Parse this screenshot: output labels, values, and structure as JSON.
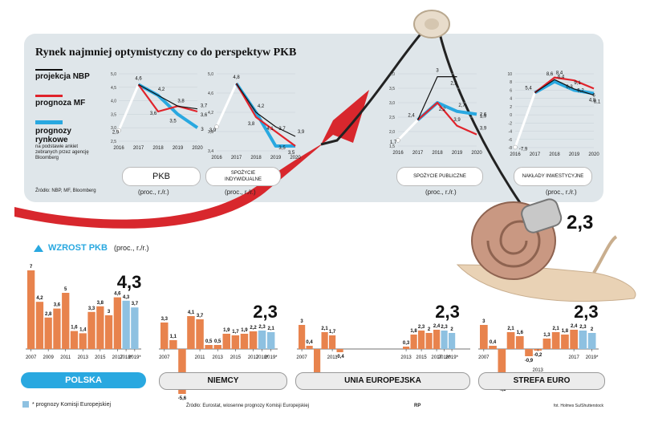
{
  "title": "Rynek najmniej optymistyczny co do perspektyw PKB",
  "legend": {
    "nbp": "projekcja NBP",
    "mf": "prognoza MF",
    "market_1": "prognozy",
    "market_2": "rynkowe",
    "market_note_1": "na podstawie ankiet",
    "market_note_2": "zebranych przez agencję",
    "market_note_3": "Bloomberg",
    "colors": {
      "nbp": "#111111",
      "mf": "#e0232b",
      "market": "#29a8e0"
    }
  },
  "source_top": "Źródło: NBP, MF, Bloomberg",
  "unit_label": "(proc., r./r.)",
  "growth_label": "WZROST PKB",
  "growth_unit": "(proc., r./r.)",
  "ec_note": "* prognozy Komisji Europejskiej",
  "source_bottom": "Źródło: Eurostat, wiosenne prognozy Komisji Europejskiej",
  "rp_mark": "RP",
  "photo_credit": "fot. Holmes Su/Shutterstock",
  "snail_value": "2,3",
  "colors": {
    "bar": "#e8834d",
    "forecast_bar": "#8ec1e1",
    "accent": "#29a8e0",
    "arrow": "#d8272d"
  },
  "chart_data": [
    {
      "type": "line",
      "title": "PKB",
      "x": [
        "2016",
        "2017",
        "2018",
        "2019",
        "2020"
      ],
      "yticks": [
        "2,5",
        "3,0",
        "3,5",
        "4,0",
        "4,5",
        "5,0"
      ],
      "ylim": [
        2.5,
        5.0
      ],
      "series": [
        {
          "name": "projekcja NBP",
          "values": [
            null,
            4.6,
            4.2,
            3.8,
            3.7
          ]
        },
        {
          "name": "prognoza MF",
          "values": [
            null,
            4.6,
            3.6,
            3.8,
            3.6
          ]
        },
        {
          "name": "prognozy rynkowe",
          "values": [
            null,
            4.6,
            4.2,
            3.5,
            3.0
          ]
        }
      ],
      "start": {
        "x": "2016",
        "value": 2.9
      },
      "labels": [
        "2,9",
        "4,6",
        "4,2",
        "3,8",
        "3,7",
        "3,6",
        "3,6",
        "3,5",
        "3"
      ]
    },
    {
      "type": "line",
      "title": "SPOŻYCIE INDYWIDUALNE",
      "x": [
        "2016",
        "2017",
        "2018",
        "2019",
        "2020"
      ],
      "yticks": [
        "3,4",
        "3,8",
        "4,2",
        "4,6",
        "5,0"
      ],
      "ylim": [
        3.4,
        5.0
      ],
      "series": [
        {
          "name": "projekcja NBP",
          "values": [
            null,
            4.8,
            4.2,
            3.9,
            3.7
          ]
        },
        {
          "name": "prognoza MF",
          "values": [
            null,
            4.8,
            4.1,
            3.8,
            3.5
          ]
        },
        {
          "name": "prognozy rynkowe",
          "values": [
            null,
            4.8,
            4.2,
            3.5,
            3.5
          ]
        }
      ],
      "start": {
        "x": "2016",
        "value": 3.9
      },
      "labels": [
        "3,9",
        "4,8",
        "4,2",
        "4,1",
        "3,9",
        "3,8",
        "3,7",
        "3,5",
        "3,5"
      ]
    },
    {
      "type": "line",
      "title": "SPOŻYCIE PUBLICZNE",
      "x": [
        "2016",
        "2017",
        "2018",
        "2019",
        "2020"
      ],
      "yticks": [
        "1,5",
        "2,0",
        "2,5",
        "3,0",
        "3,5",
        "4,0"
      ],
      "ylim": [
        1.5,
        4.0
      ],
      "series": [
        {
          "name": "projekcja NBP",
          "values": [
            null,
            2.4,
            3.9,
            3.9,
            null
          ]
        },
        {
          "name": "prognoza MF",
          "values": [
            null,
            2.4,
            3.0,
            2.2,
            1.9
          ]
        },
        {
          "name": "prognozy rynkowe",
          "values": [
            null,
            2.4,
            3.0,
            2.7,
            2.6
          ]
        }
      ],
      "start": {
        "x": "2016",
        "value": 1.7
      },
      "labels": [
        "1,7",
        "2,4",
        "3",
        "2,2",
        "2,2",
        "3,9",
        "3,9",
        "2,7",
        "2,6",
        "1,9"
      ]
    },
    {
      "type": "line",
      "title": "NAKŁADY INWESTYCYJNE",
      "x": [
        "2016",
        "2017",
        "2018",
        "2019",
        "2020"
      ],
      "yticks": [
        "-8",
        "-6",
        "-4",
        "-2",
        "0",
        "2",
        "4",
        "6",
        "8",
        "10"
      ],
      "ylim": [
        -8,
        10
      ],
      "series": [
        {
          "name": "projekcja NBP",
          "values": [
            null,
            5.4,
            8.6,
            6.3,
            4.8
          ]
        },
        {
          "name": "prognoza MF",
          "values": [
            null,
            5.4,
            9.1,
            8.4,
            6.4
          ]
        },
        {
          "name": "prognozy rynkowe",
          "values": [
            null,
            5.4,
            8.1,
            6.0,
            5.2
          ]
        }
      ],
      "start": {
        "x": "2016",
        "value": -7.9
      },
      "labels": [
        "-7,9",
        "5,4",
        "8,6",
        "9,1",
        "8,1",
        "8,4",
        "6,3",
        "6",
        "6,4",
        "5,2",
        "4,8"
      ]
    },
    {
      "type": "bar",
      "title": "POLSKA",
      "categories": [
        "2007",
        "2008",
        "2009",
        "2010",
        "2011",
        "2012",
        "2013",
        "2014",
        "2015",
        "2016",
        "2017",
        "2018*",
        "2019*"
      ],
      "values": [
        7.0,
        4.2,
        2.8,
        3.6,
        5.0,
        1.6,
        1.4,
        3.3,
        3.8,
        3.0,
        4.6,
        4.3,
        3.7
      ],
      "labels": [
        "7",
        "4,2",
        "2,8",
        "3,6",
        "5",
        "1,6",
        "1,4",
        "3,3",
        "3,8",
        "3",
        "4,6",
        "4,3",
        "3,7"
      ],
      "forecast_from": 11,
      "xtick_labels": [
        "2007",
        "2009",
        "2011",
        "2013",
        "2015",
        "2017",
        "2018*",
        "2019*"
      ],
      "highlight": "4,3"
    },
    {
      "type": "bar",
      "title": "NIEMCY",
      "categories": [
        "2007",
        "2008",
        "2009",
        "2010",
        "2011",
        "2012",
        "2013",
        "2014",
        "2015",
        "2016",
        "2017",
        "2018*",
        "2019*"
      ],
      "values": [
        3.3,
        1.1,
        -5.6,
        4.1,
        3.7,
        0.5,
        0.5,
        1.9,
        1.7,
        1.9,
        2.2,
        2.3,
        2.1
      ],
      "labels": [
        "3,3",
        "1,1",
        "-5,6",
        "4,1",
        "3,7",
        "0,5",
        "0,5",
        "1,9",
        "1,7",
        "1,9",
        "2,2",
        "2,3",
        "2,1"
      ],
      "forecast_from": 11,
      "xtick_labels": [
        "2007",
        "2011",
        "2013",
        "2015",
        "2017",
        "2018*",
        "2019*"
      ],
      "highlight": "2,3"
    },
    {
      "type": "bar",
      "title": "UNIA EUROPEJSKA",
      "categories": [
        "2007",
        "2008",
        "2009",
        "2010",
        "2011",
        "2012",
        "2013",
        "2014",
        "2015",
        "2016",
        "2017",
        "2018*",
        "2019*"
      ],
      "values": [
        3.0,
        0.4,
        -4.3,
        2.1,
        1.7,
        -0.4,
        0.3,
        1.8,
        2.3,
        2.0,
        2.4,
        2.3,
        2.0
      ],
      "labels": [
        "3",
        "0,4",
        "-4,3",
        "2,1",
        "1,7",
        "-0,4",
        "0,3",
        "1,8",
        "2,3",
        "2",
        "2,4",
        "2,3",
        "2"
      ],
      "forecast_from": 11,
      "xtick_labels": [
        "2007",
        "2011",
        "2013",
        "2015",
        "2017",
        "2018*",
        "2019*"
      ],
      "highlight": "2,3"
    },
    {
      "type": "bar",
      "title": "STREFA EURO",
      "categories": [
        "2007",
        "2008",
        "2009",
        "2010",
        "2011",
        "2012",
        "2013",
        "2014",
        "2015",
        "2016",
        "2017",
        "2018*",
        "2019*"
      ],
      "values": [
        3.0,
        0.4,
        -4.5,
        2.1,
        1.6,
        -0.9,
        -0.2,
        1.3,
        2.1,
        1.8,
        2.4,
        2.3,
        2.0
      ],
      "labels": [
        "3",
        "0,4",
        "-4,5",
        "2,1",
        "1,6",
        "-0,9",
        "-0,2",
        "1,3",
        "2,1",
        "1,8",
        "2,4",
        "2,3",
        "2"
      ],
      "forecast_from": 11,
      "xtick_labels": [
        "2007",
        "2013",
        "2017",
        "2019*"
      ],
      "highlight": "2,3"
    }
  ]
}
